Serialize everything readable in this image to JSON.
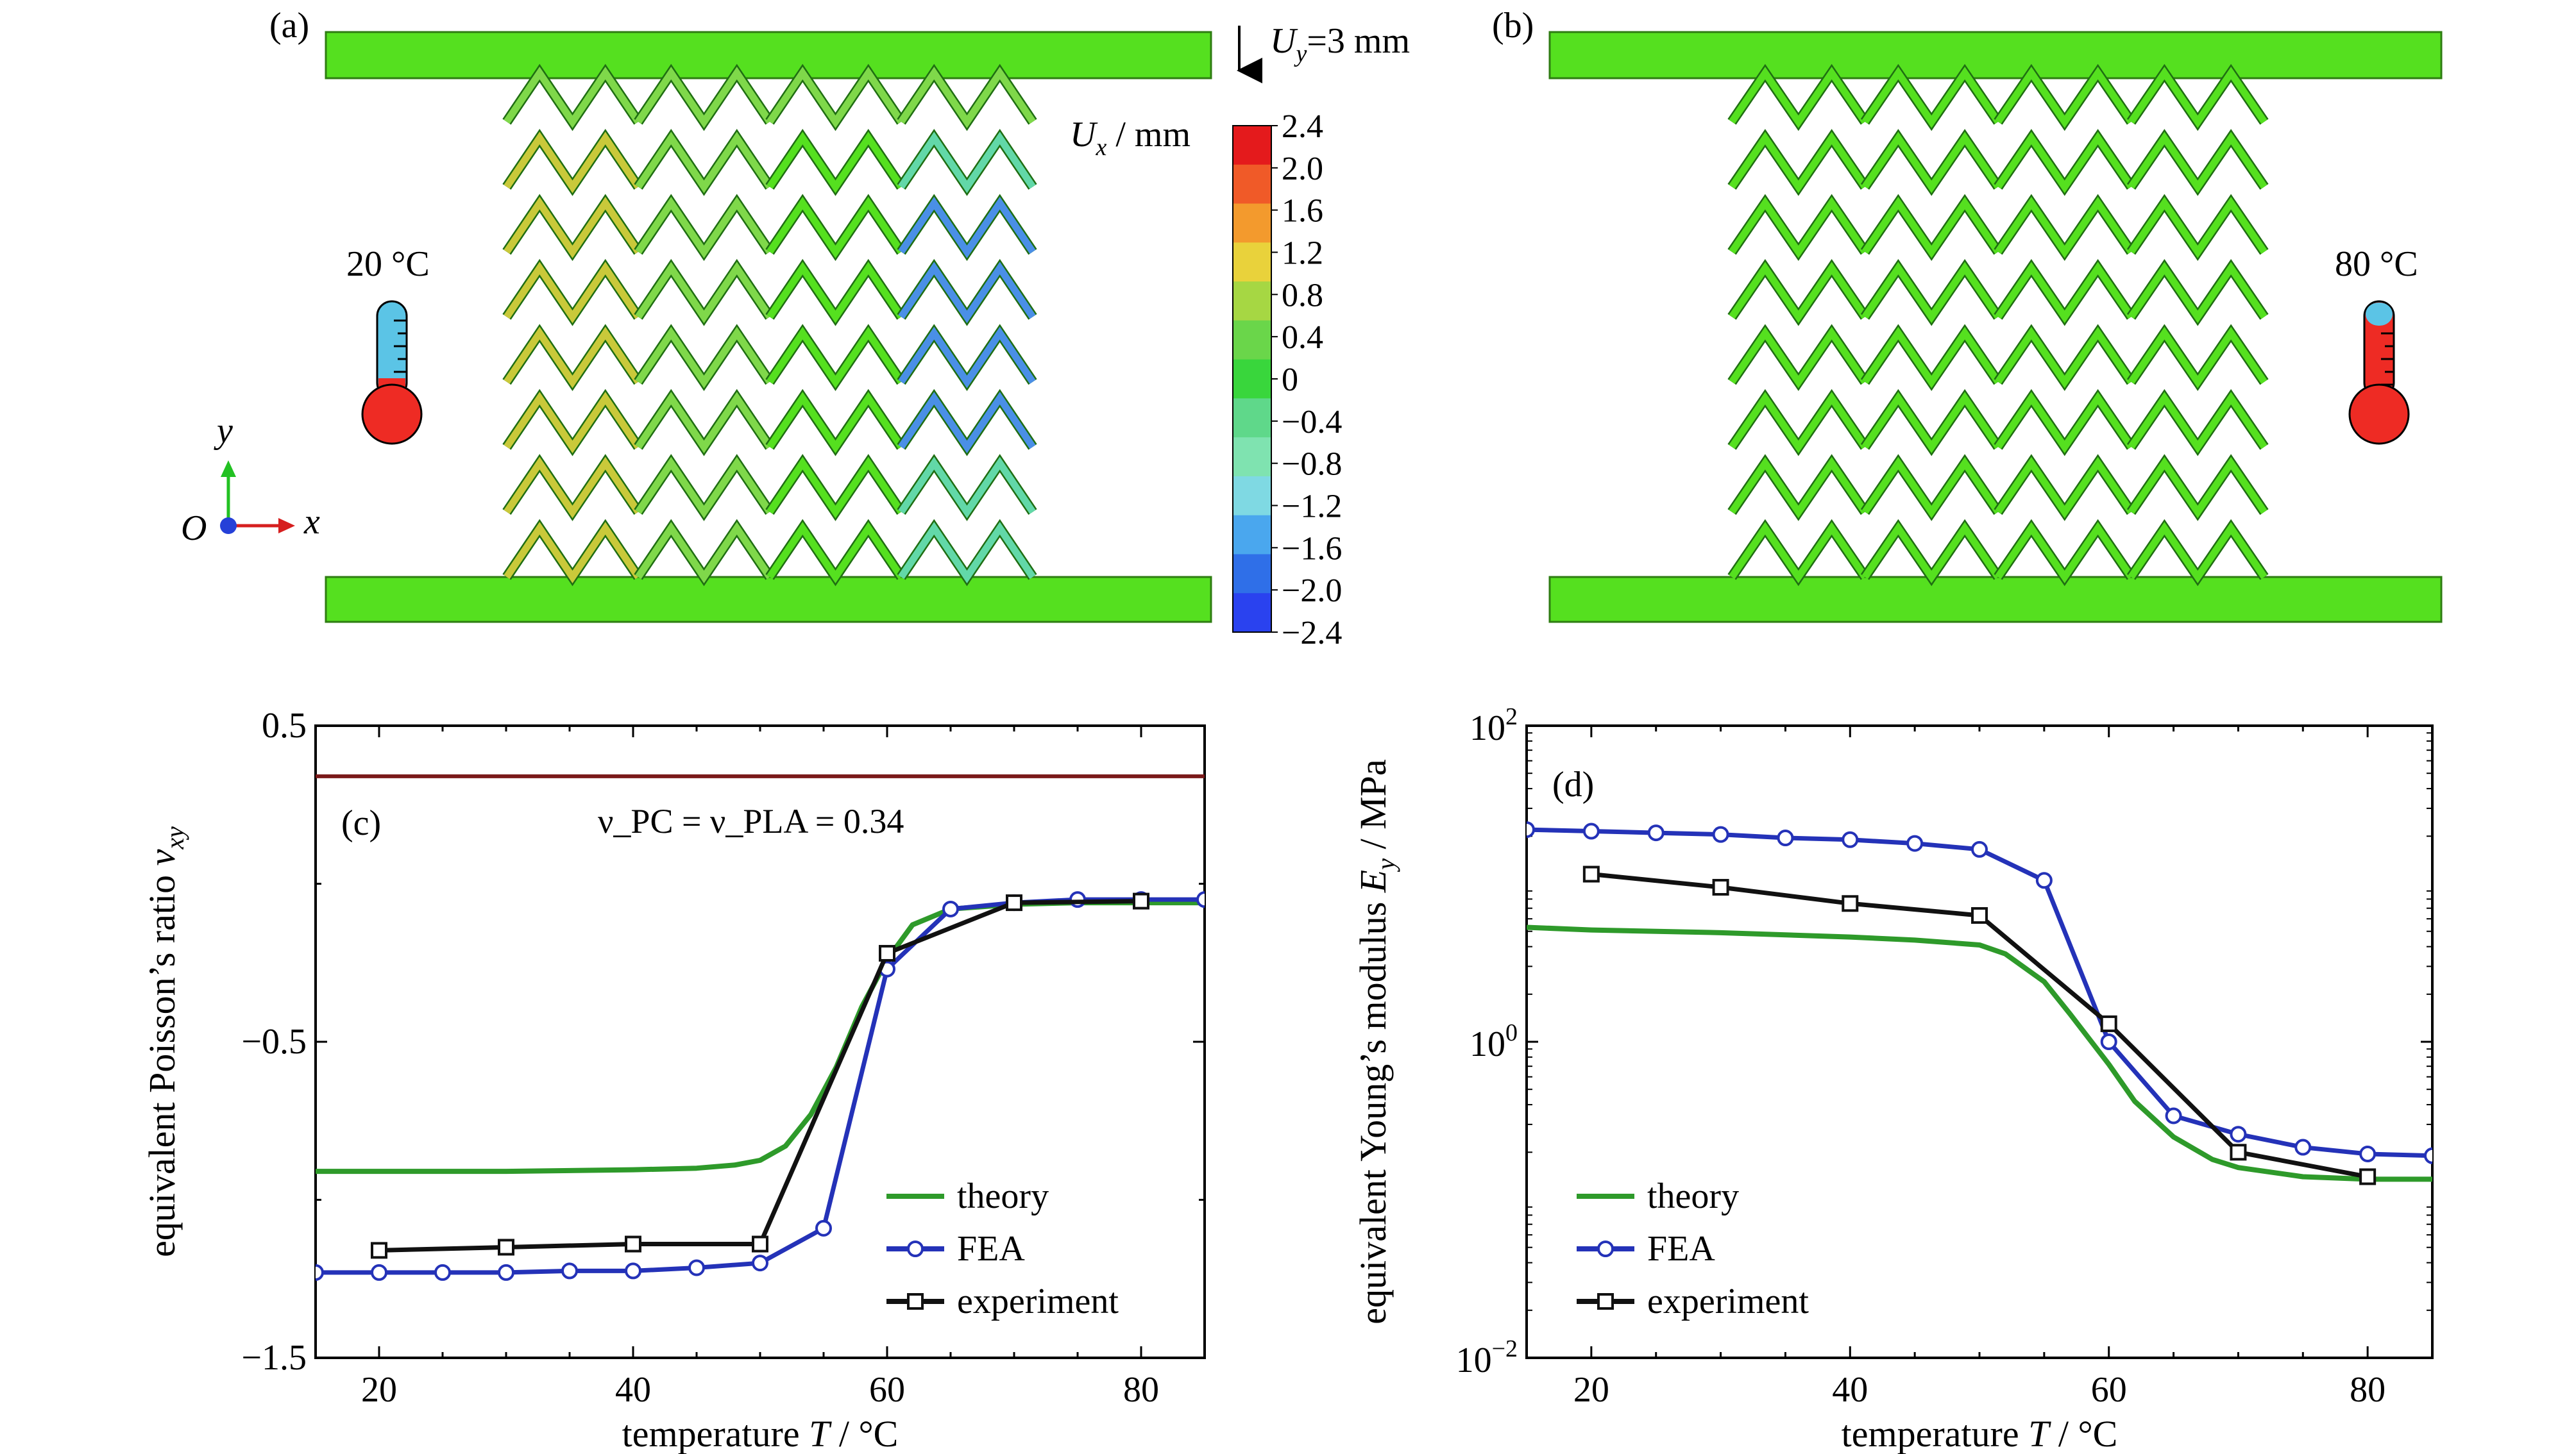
{
  "panels": {
    "a": {
      "label": "(a)",
      "displacement_prefix": "U",
      "displacement_sub": "y",
      "displacement_value": "=3 mm",
      "temperature": "20 °C",
      "colorbar_prefix": "U",
      "colorbar_sub": "x",
      "colorbar_unit": "/ mm",
      "colorbar_ticks": [
        "2.4",
        "2.0",
        "1.6",
        "1.2",
        "0.8",
        "0.4",
        "0",
        "−0.4",
        "−0.8",
        "−1.2",
        "−1.6",
        "−2.0",
        "−2.4"
      ],
      "colorbar_colors": [
        "#e41a1c",
        "#f05a28",
        "#f39a2d",
        "#e9d23b",
        "#a6d743",
        "#6ad64a",
        "#39d63c",
        "#5fd88a",
        "#7fe3b0",
        "#7fd9e3",
        "#4aa7ee",
        "#2f6fe8",
        "#2a42ef"
      ],
      "axis_origin": "O",
      "axis_x": "x",
      "axis_y": "y",
      "thermometer_color": "#ee2b24",
      "thermometer_cold_color": "#5bc4e6"
    },
    "b": {
      "label": "(b)",
      "temperature": "80 °C"
    }
  },
  "colors": {
    "plate": "#55e01f",
    "lattice": "#55e01f",
    "theory": "#2e9a2a",
    "fea": "#2432b8",
    "experiment": "#111111",
    "reference_line": "#7a1a1a"
  },
  "chart_data": [
    {
      "panel": "(c)",
      "type": "line",
      "xlabel_prefix": "temperature ",
      "xlabel_var": "T",
      "xlabel_unit": " / °C",
      "ylabel_prefix": "equivalent Poisson’s ratio ",
      "ylabel_var": "ν",
      "ylabel_sub": "xy",
      "xlim": [
        15,
        85
      ],
      "ylim": [
        -1.5,
        0.5
      ],
      "xticks": [
        20,
        40,
        60,
        80
      ],
      "yticks": [
        -1.5,
        -0.5,
        0.5
      ],
      "ytick_labels": [
        "−1.5",
        "−0.5",
        "0.5"
      ],
      "legend_position": "bottom-right",
      "reference_line": {
        "y": 0.34,
        "label": "ν_PC = ν_PLA = 0.34"
      },
      "series": [
        {
          "name": "theory",
          "marker": "none",
          "x": [
            15,
            20,
            30,
            40,
            45,
            48,
            50,
            52,
            54,
            56,
            58,
            60,
            62,
            65,
            70,
            75,
            80,
            85
          ],
          "y": [
            -0.91,
            -0.91,
            -0.91,
            -0.905,
            -0.9,
            -0.89,
            -0.875,
            -0.83,
            -0.73,
            -0.58,
            -0.39,
            -0.24,
            -0.13,
            -0.08,
            -0.065,
            -0.06,
            -0.06,
            -0.06
          ]
        },
        {
          "name": "FEA",
          "marker": "circle",
          "x": [
            15,
            20,
            25,
            30,
            35,
            40,
            45,
            50,
            55,
            60,
            65,
            70,
            75,
            80,
            85
          ],
          "y": [
            -1.23,
            -1.23,
            -1.23,
            -1.23,
            -1.225,
            -1.225,
            -1.215,
            -1.2,
            -1.09,
            -0.27,
            -0.08,
            -0.06,
            -0.05,
            -0.05,
            -0.05
          ]
        },
        {
          "name": "experiment",
          "marker": "square",
          "x": [
            20,
            30,
            40,
            50,
            60,
            70,
            80
          ],
          "y": [
            -1.16,
            -1.15,
            -1.14,
            -1.14,
            -0.22,
            -0.06,
            -0.055
          ]
        }
      ]
    },
    {
      "panel": "(d)",
      "type": "line",
      "xlabel_prefix": "temperature ",
      "xlabel_var": "T",
      "xlabel_unit": " / °C",
      "ylabel_prefix": "equivalent Young’s modulus ",
      "ylabel_var": "E",
      "ylabel_sub": "y",
      "ylabel_unit": " / MPa",
      "xlim": [
        15,
        85
      ],
      "ylim": [
        0.01,
        100
      ],
      "yscale": "log",
      "xticks": [
        20,
        40,
        60,
        80
      ],
      "yticks_exp": [
        -2,
        0,
        2
      ],
      "ytick_base": "10",
      "ytick_exps": [
        "−2",
        "0",
        "2"
      ],
      "legend_position": "bottom-left",
      "series": [
        {
          "name": "theory",
          "marker": "none",
          "x": [
            15,
            20,
            30,
            40,
            45,
            50,
            52,
            55,
            57,
            60,
            62,
            65,
            68,
            70,
            75,
            80,
            85
          ],
          "y": [
            5.3,
            5.1,
            4.9,
            4.6,
            4.4,
            4.1,
            3.6,
            2.4,
            1.5,
            0.72,
            0.42,
            0.25,
            0.18,
            0.16,
            0.14,
            0.135,
            0.135
          ]
        },
        {
          "name": "FEA",
          "marker": "circle",
          "x": [
            15,
            20,
            25,
            30,
            35,
            40,
            45,
            50,
            55,
            60,
            65,
            70,
            75,
            80,
            85
          ],
          "y": [
            22.0,
            21.5,
            21.0,
            20.5,
            19.5,
            19.0,
            18.0,
            16.5,
            10.5,
            1.0,
            0.34,
            0.26,
            0.215,
            0.195,
            0.19
          ]
        },
        {
          "name": "experiment",
          "marker": "square",
          "x": [
            20,
            30,
            40,
            50,
            60,
            70,
            80
          ],
          "y": [
            11.5,
            9.5,
            7.5,
            6.3,
            1.3,
            0.2,
            0.14
          ]
        }
      ]
    }
  ]
}
